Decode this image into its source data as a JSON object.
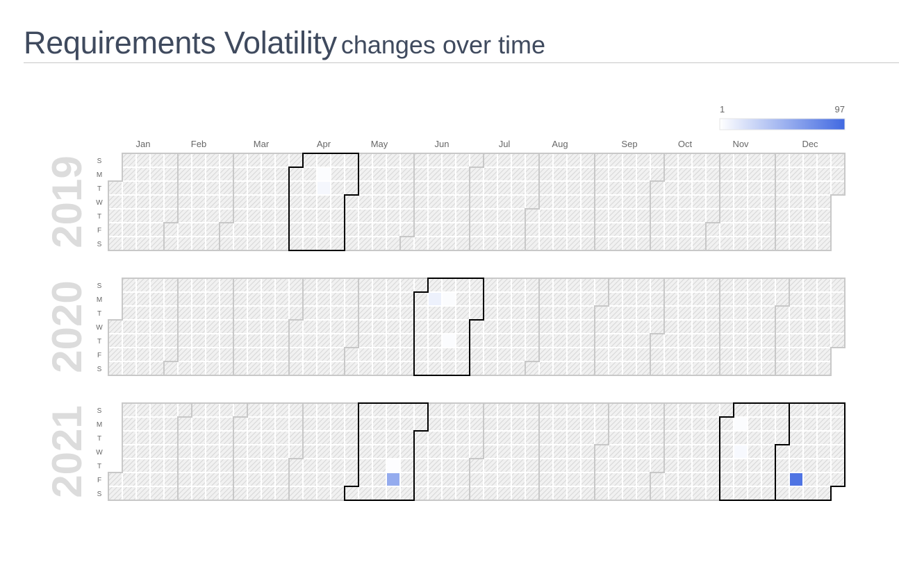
{
  "header": {
    "title": "Requirements Volatility",
    "subtitle": "changes over time"
  },
  "colors": {
    "scale_low": "#ffffff",
    "scale_high": "#4169e1",
    "empty_cell": "#f1f1f1",
    "hatch": "#d6d6d6",
    "month_border": "#c8c8c8",
    "highlight_border": "#000000",
    "year_label": "#dcdcdc",
    "title": "#3f4a5e"
  },
  "chart_data": {
    "type": "heatmap",
    "title": "Requirements Volatility",
    "subtitle": "changes over time",
    "layout": "calendar",
    "legend": {
      "min_label": "1",
      "max_label": "97",
      "min": 1,
      "max": 97,
      "position": "top-right"
    },
    "years": [
      "2019",
      "2020",
      "2021"
    ],
    "months": [
      "Jan",
      "Feb",
      "Mar",
      "Apr",
      "May",
      "Jun",
      "Jul",
      "Aug",
      "Sep",
      "Oct",
      "Nov",
      "Dec"
    ],
    "weekday_labels": [
      "S",
      "M",
      "T",
      "W",
      "T",
      "F",
      "S"
    ],
    "data": [
      {
        "date": "2019-04-15",
        "value": 3
      },
      {
        "date": "2019-04-16",
        "value": 6
      },
      {
        "date": "2020-06-08",
        "value": 10
      },
      {
        "date": "2020-06-15",
        "value": 3
      },
      {
        "date": "2020-06-18",
        "value": 3
      },
      {
        "date": "2021-05-20",
        "value": 2
      },
      {
        "date": "2021-05-21",
        "value": 55
      },
      {
        "date": "2021-11-08",
        "value": 3
      },
      {
        "date": "2021-11-10",
        "value": 5
      },
      {
        "date": "2021-12-10",
        "value": 90
      }
    ]
  }
}
